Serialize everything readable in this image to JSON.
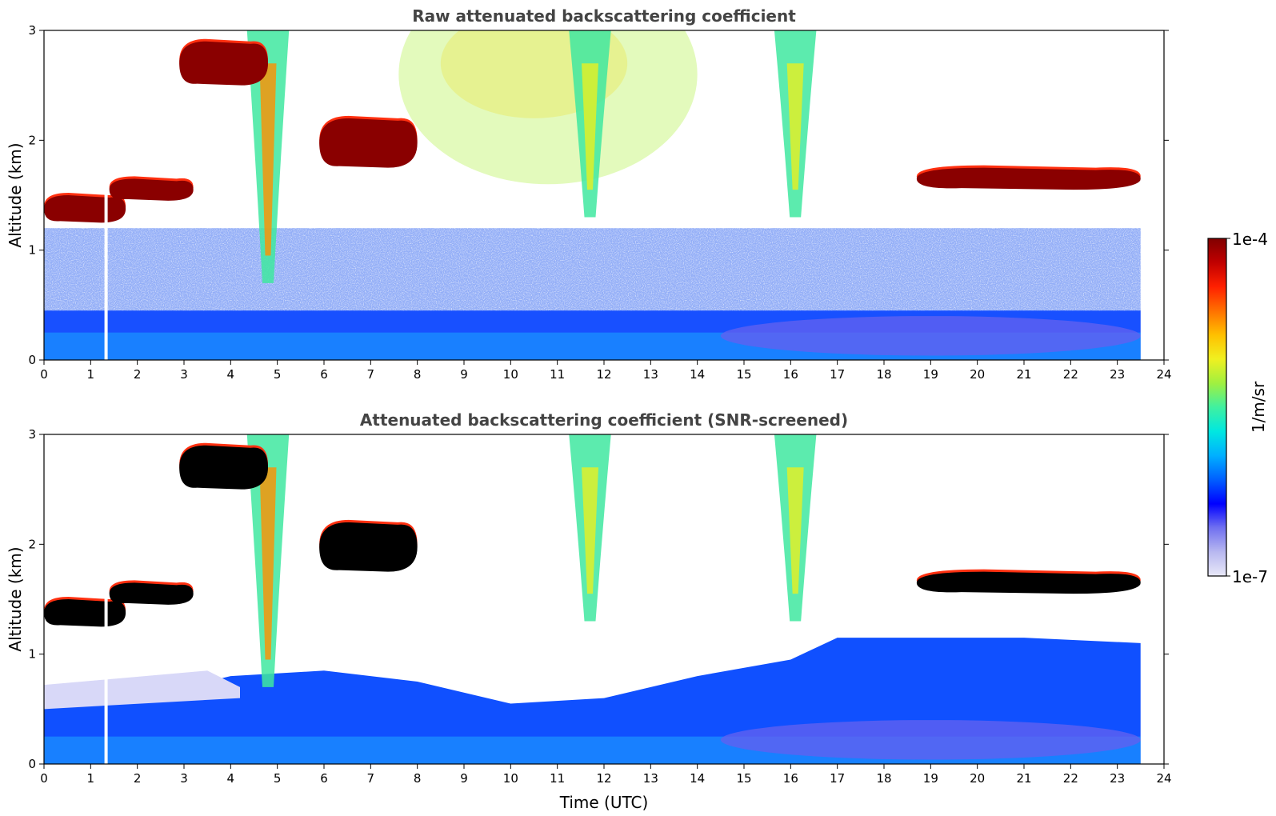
{
  "colors": {
    "background": "#ffffff",
    "title": "#444444",
    "frame": "#000000",
    "colormap": [
      "#e8e8f8",
      "#b8b8f0",
      "#7070f0",
      "#0000ff",
      "#0060ff",
      "#00b0ff",
      "#00e8e0",
      "#40f0a0",
      "#a0f040",
      "#f0f020",
      "#ffc000",
      "#ff7000",
      "#ff2000",
      "#c00000",
      "#800000"
    ],
    "cloud_cores": "#000000",
    "data_gap": "#ffffff"
  },
  "colorbar": {
    "max_label": "1e-4",
    "min_label": "1e-7",
    "unit_label": "1/m/sr",
    "scale": "log",
    "range": [
      1e-07,
      0.0001
    ]
  },
  "chart_data": [
    {
      "type": "heatmap",
      "title": "Raw attenuated backscattering coefficient",
      "xlabel": "",
      "ylabel": "Altitude (km)",
      "xlim": [
        0,
        24
      ],
      "ylim": [
        0,
        3
      ],
      "x_ticks": [
        "0",
        "1",
        "2",
        "3",
        "4",
        "5",
        "6",
        "7",
        "8",
        "9",
        "10",
        "11",
        "12",
        "13",
        "14",
        "15",
        "16",
        "17",
        "18",
        "19",
        "20",
        "21",
        "22",
        "23",
        "24"
      ],
      "y_ticks": [
        "0",
        "1",
        "2",
        "3"
      ],
      "data_end_time": 23.5,
      "data_gap_time": 1.33,
      "cloud_layers": [
        {
          "time_start": 0.0,
          "time_end": 1.75,
          "altitude_base": 1.25,
          "altitude_top": 1.5
        },
        {
          "time_start": 1.4,
          "time_end": 3.2,
          "altitude_base": 1.45,
          "altitude_top": 1.65
        },
        {
          "time_start": 2.9,
          "time_end": 4.8,
          "altitude_base": 2.5,
          "altitude_top": 2.9
        },
        {
          "time_start": 5.9,
          "time_end": 8.0,
          "altitude_base": 1.75,
          "altitude_top": 2.2
        },
        {
          "time_start": 18.7,
          "time_end": 23.5,
          "altitude_base": 1.55,
          "altitude_top": 1.75
        }
      ],
      "precipitation_shafts": [
        {
          "time": 4.8,
          "altitude_top": 3.0,
          "altitude_bottom": 0.7
        },
        {
          "time": 11.7,
          "altitude_top": 3.0,
          "altitude_bottom": 1.3
        },
        {
          "time": 16.1,
          "altitude_top": 3.0,
          "altitude_bottom": 1.3
        }
      ],
      "boundary_layer_top_km": 0.45
    },
    {
      "type": "heatmap",
      "title": "Attenuated backscattering coefficient (SNR-screened)",
      "xlabel": "Time (UTC)",
      "ylabel": "Altitude (km)",
      "xlim": [
        0,
        24
      ],
      "ylim": [
        0,
        3
      ],
      "x_ticks": [
        "0",
        "1",
        "2",
        "3",
        "4",
        "5",
        "6",
        "7",
        "8",
        "9",
        "10",
        "11",
        "12",
        "13",
        "14",
        "15",
        "16",
        "17",
        "18",
        "19",
        "20",
        "21",
        "22",
        "23",
        "24"
      ],
      "y_ticks": [
        "0",
        "1",
        "2",
        "3"
      ],
      "data_end_time": 23.5,
      "data_gap_time": 1.33,
      "cloud_layers": [
        {
          "time_start": 0.0,
          "time_end": 1.75,
          "altitude_base": 1.25,
          "altitude_top": 1.5
        },
        {
          "time_start": 1.4,
          "time_end": 3.2,
          "altitude_base": 1.45,
          "altitude_top": 1.65
        },
        {
          "time_start": 2.9,
          "time_end": 4.8,
          "altitude_base": 2.5,
          "altitude_top": 2.9
        },
        {
          "time_start": 5.9,
          "time_end": 8.0,
          "altitude_base": 1.75,
          "altitude_top": 2.2
        },
        {
          "time_start": 18.7,
          "time_end": 23.5,
          "altitude_base": 1.55,
          "altitude_top": 1.75
        }
      ],
      "precipitation_shafts": [
        {
          "time": 4.8,
          "altitude_top": 3.0,
          "altitude_bottom": 0.7
        },
        {
          "time": 11.7,
          "altitude_top": 3.0,
          "altitude_bottom": 1.3
        },
        {
          "time": 16.1,
          "altitude_top": 3.0,
          "altitude_bottom": 1.3
        }
      ],
      "boundary_layer_top_profile": [
        {
          "time": 0,
          "altitude": 0.5
        },
        {
          "time": 2,
          "altitude": 0.6
        },
        {
          "time": 4,
          "altitude": 0.8
        },
        {
          "time": 6,
          "altitude": 0.85
        },
        {
          "time": 8,
          "altitude": 0.75
        },
        {
          "time": 10,
          "altitude": 0.55
        },
        {
          "time": 12,
          "altitude": 0.6
        },
        {
          "time": 14,
          "altitude": 0.8
        },
        {
          "time": 16,
          "altitude": 0.95
        },
        {
          "time": 17,
          "altitude": 1.15
        },
        {
          "time": 19,
          "altitude": 1.15
        },
        {
          "time": 21,
          "altitude": 1.15
        },
        {
          "time": 23.5,
          "altitude": 1.1
        }
      ]
    }
  ]
}
